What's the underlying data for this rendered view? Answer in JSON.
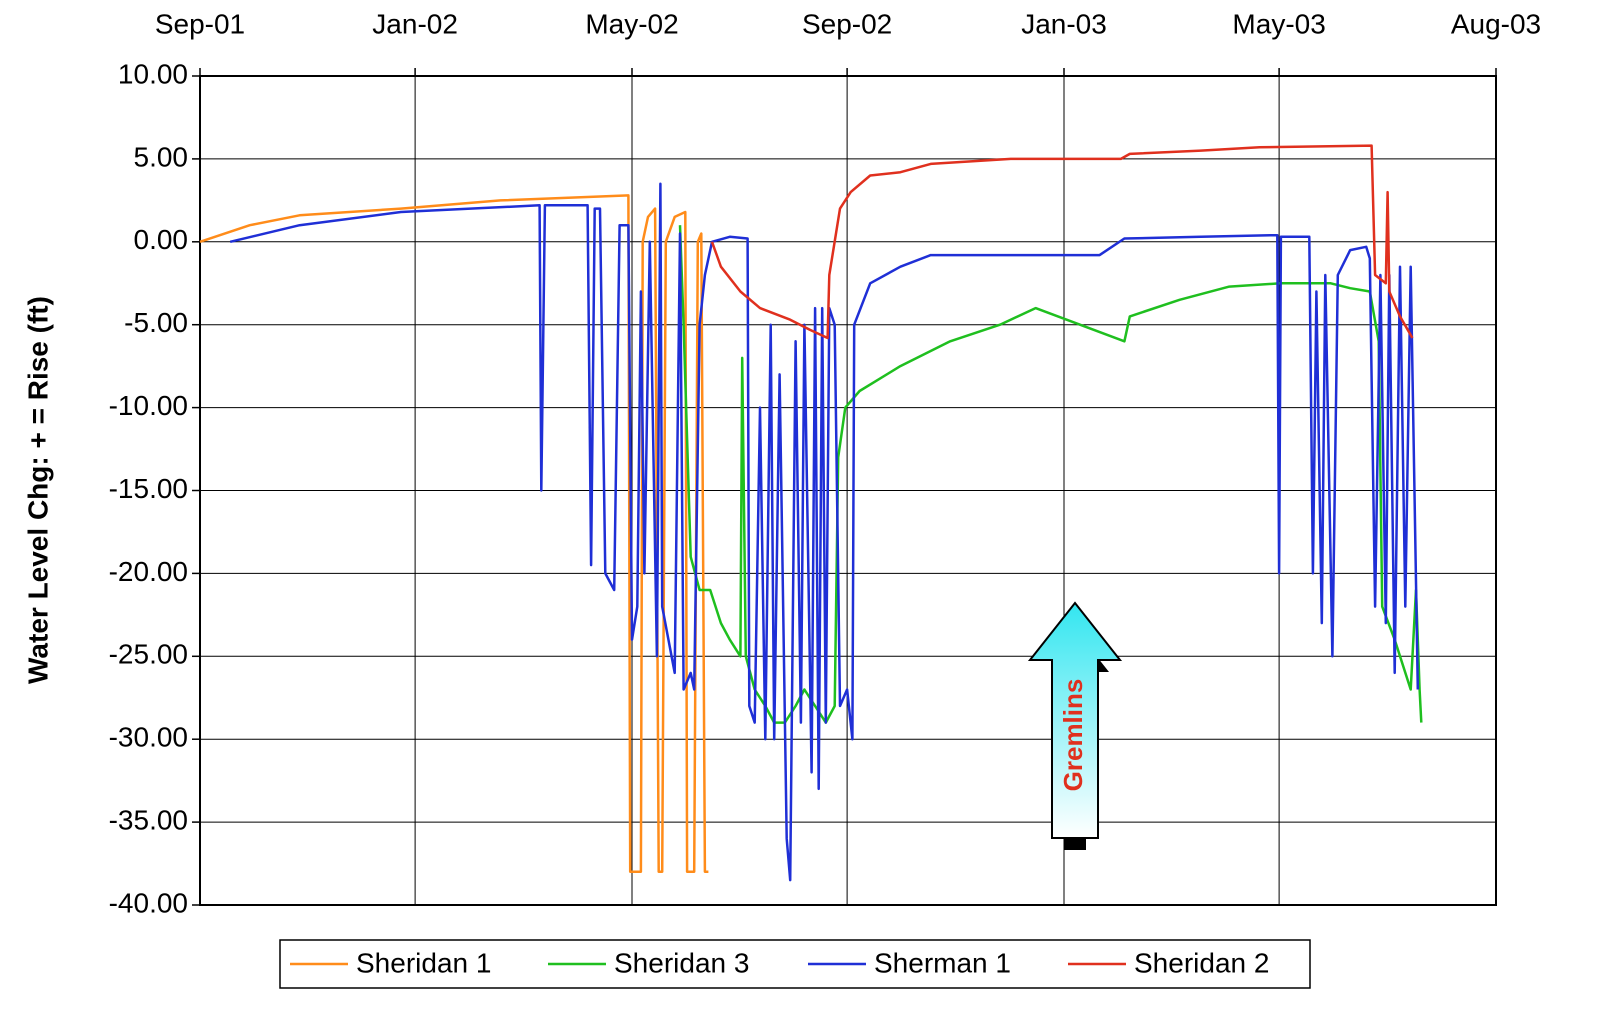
{
  "chart_data": {
    "type": "line",
    "y_label": "Water Level Chg: + = Rise (ft)",
    "annotation": "Gremlins",
    "xlim": [
      37135,
      37864
    ],
    "xticks": [
      {
        "value": 37135,
        "label": "Sep-01"
      },
      {
        "value": 37256,
        "label": "Jan-02"
      },
      {
        "value": 37378,
        "label": "May-02"
      },
      {
        "value": 37499,
        "label": "Sep-02"
      },
      {
        "value": 37621,
        "label": "Jan-03"
      },
      {
        "value": 37742,
        "label": "May-03"
      },
      {
        "value": 37864,
        "label": "Aug-03"
      }
    ],
    "ylim": [
      -40,
      10
    ],
    "yticks": [
      {
        "value": 10,
        "label": "10.00"
      },
      {
        "value": 5,
        "label": "5.00"
      },
      {
        "value": 0,
        "label": "0.00"
      },
      {
        "value": -5,
        "label": "-5.00"
      },
      {
        "value": -10,
        "label": "-10.00"
      },
      {
        "value": -15,
        "label": "-15.00"
      },
      {
        "value": -20,
        "label": "-20.00"
      },
      {
        "value": -25,
        "label": "-25.00"
      },
      {
        "value": -30,
        "label": "-30.00"
      },
      {
        "value": -35,
        "label": "-35.00"
      },
      {
        "value": -40,
        "label": "-40.00"
      }
    ],
    "grid": true,
    "legend": "bottom",
    "series": [
      {
        "name": "Sheridan 1",
        "color": "#ff8c1a",
        "x": [
          37135,
          37163,
          37191,
          37248,
          37304,
          37376,
          37377,
          37383,
          37384,
          37387,
          37391,
          37393,
          37395,
          37397,
          37402,
          37408,
          37409,
          37413,
          37415,
          37417,
          37419,
          37421
        ],
        "values": [
          0,
          1,
          1.6,
          2,
          2.5,
          2.8,
          -38,
          -38,
          0,
          1.5,
          2,
          -38,
          -38,
          0,
          1.5,
          1.8,
          -38,
          -38,
          0,
          0.5,
          -38,
          -38
        ]
      },
      {
        "name": "Sheridan 3",
        "color": "#1fbf1f",
        "x": [
          37405,
          37407,
          37411,
          37416,
          37422,
          37428,
          37433,
          37439,
          37440,
          37442,
          37447,
          37453,
          37458,
          37464,
          37470,
          37475,
          37481,
          37487,
          37492,
          37494,
          37498,
          37506,
          37529,
          37557,
          37585,
          37605,
          37655,
          37658,
          37686,
          37714,
          37743,
          37771,
          37782,
          37793,
          37798,
          37800,
          37807,
          37816,
          37819,
          37821,
          37822
        ],
        "values": [
          1,
          -5,
          -19,
          -21,
          -21,
          -23,
          -24,
          -25,
          -7,
          -25,
          -27,
          -28,
          -29,
          -29,
          -28,
          -27,
          -28,
          -29,
          -28,
          -13,
          -10,
          -9,
          -7.5,
          -6,
          -5,
          -4,
          -6,
          -4.5,
          -3.5,
          -2.7,
          -2.5,
          -2.5,
          -2.8,
          -3,
          -6,
          -22,
          -24,
          -27,
          -21,
          -27,
          -29
        ]
      },
      {
        "name": "Sherman 1",
        "color": "#1f2fd6",
        "x": [
          37152,
          37191,
          37248,
          37326,
          37327,
          37329,
          37353,
          37355,
          37357,
          37360,
          37363,
          37368,
          37371,
          37376,
          37378,
          37381,
          37383,
          37385,
          37388,
          37392,
          37394,
          37395,
          37402,
          37405,
          37407,
          37411,
          37413,
          37416,
          37419,
          37423,
          37433,
          37443,
          37444,
          37447,
          37450,
          37453,
          37456,
          37458,
          37461,
          37465,
          37467,
          37470,
          37473,
          37475,
          37479,
          37481,
          37483,
          37485,
          37487,
          37489,
          37492,
          37495,
          37499,
          37502,
          37503,
          37512,
          37529,
          37546,
          37585,
          37641,
          37655,
          37698,
          37737,
          37741,
          37742,
          37743,
          37759,
          37761,
          37763,
          37766,
          37768,
          37772,
          37775,
          37782,
          37791,
          37793,
          37796,
          37799,
          37802,
          37804,
          37807,
          37810,
          37813,
          37816,
          37820
        ],
        "values": [
          0,
          1,
          1.8,
          2.2,
          -15,
          2.2,
          2.2,
          -19.5,
          2,
          2,
          -20,
          -21,
          1,
          1,
          -24,
          -22,
          -3,
          -20,
          0,
          -25,
          3.5,
          -22,
          -26,
          0.5,
          -27,
          -26,
          -27,
          -5,
          -2,
          0,
          0.3,
          0.2,
          -28,
          -29,
          -10,
          -30,
          -5,
          -30,
          -8,
          -36,
          -38.5,
          -6,
          -29,
          -5,
          -32,
          -4,
          -33,
          -4,
          -29,
          -4,
          -5,
          -28,
          -27,
          -30,
          -5,
          -2.5,
          -1.5,
          -0.8,
          -0.8,
          -0.8,
          0.2,
          0.3,
          0.4,
          0.4,
          -20,
          0.3,
          0.3,
          -20,
          -3,
          -23,
          -2,
          -25,
          -2,
          -0.5,
          -0.3,
          -1,
          -22,
          -2,
          -23,
          -2,
          -26,
          -1.5,
          -22,
          -1.5,
          -27
        ]
      },
      {
        "name": "Sheridan 2",
        "color": "#e0301e",
        "x": [
          37423,
          37428,
          37439,
          37450,
          37467,
          37478,
          37488,
          37489,
          37495,
          37501,
          37512,
          37529,
          37546,
          37591,
          37653,
          37658,
          37698,
          37731,
          37794,
          37796,
          37802,
          37803,
          37804,
          37810,
          37817
        ],
        "values": [
          0,
          -1.5,
          -3,
          -4,
          -4.7,
          -5.3,
          -5.8,
          -2,
          2,
          3,
          4,
          4.2,
          4.7,
          5,
          5,
          5.3,
          5.5,
          5.7,
          5.8,
          -2,
          -2.5,
          3,
          -3,
          -4.5,
          -5.8
        ]
      }
    ]
  }
}
